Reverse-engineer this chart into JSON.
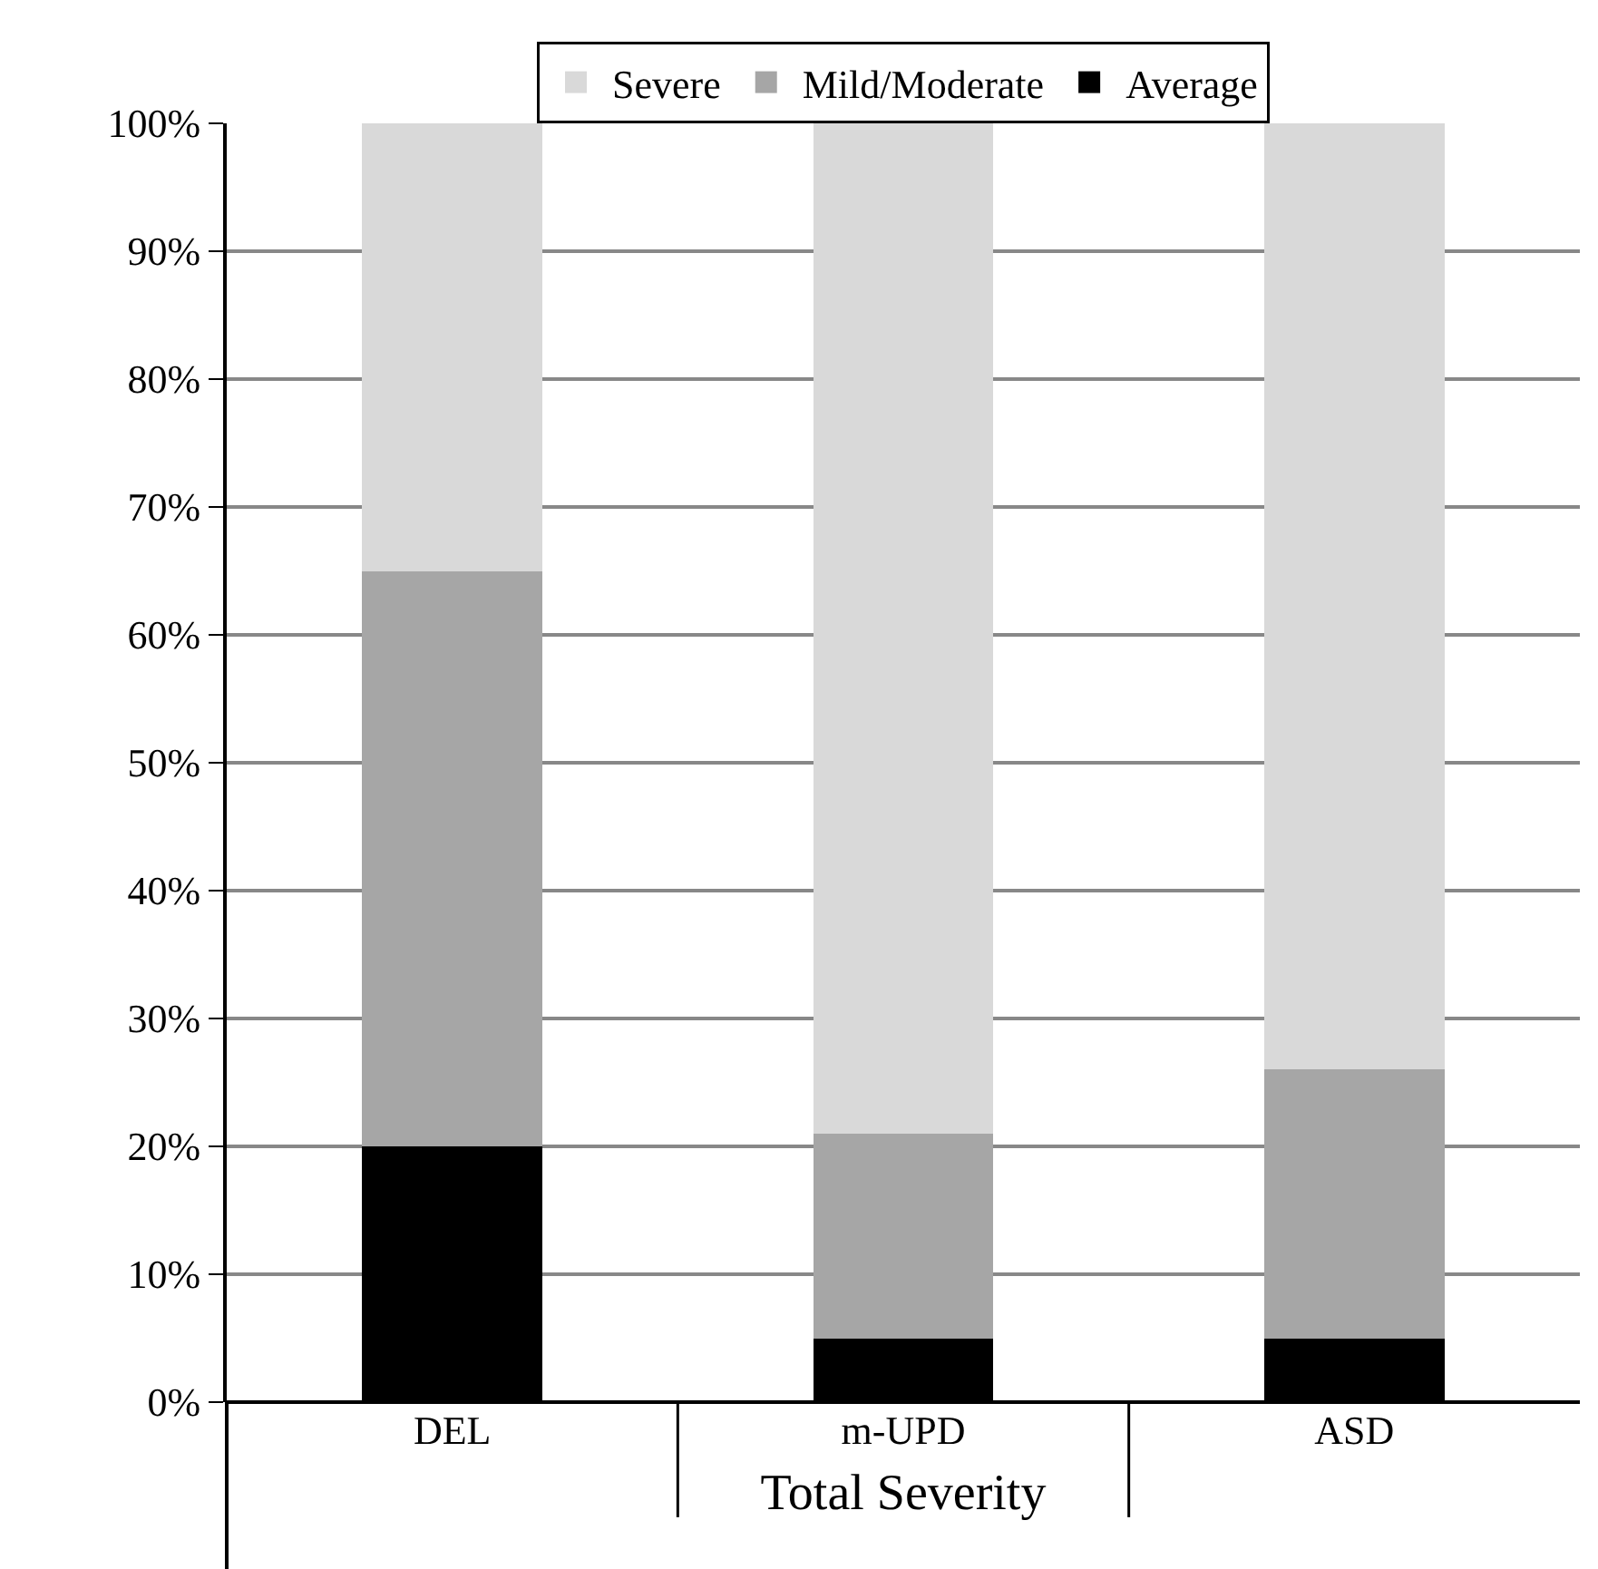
{
  "chart_data": {
    "type": "bar",
    "stacked": true,
    "xlabel": "Total Severity",
    "categories": [
      "DEL",
      "m-UPD",
      "ASD"
    ],
    "series": [
      {
        "name": "Average",
        "color": "#000000",
        "values": [
          20,
          5,
          5
        ]
      },
      {
        "name": "Mild/Moderate",
        "color": "#a6a6a6",
        "values": [
          45,
          16,
          21
        ]
      },
      {
        "name": "Severe",
        "color": "#d9d9d9",
        "values": [
          35,
          79,
          74
        ]
      }
    ],
    "ylim": [
      0,
      100
    ],
    "yticks": [
      {
        "value": 0,
        "label": "0%"
      },
      {
        "value": 10,
        "label": "10%"
      },
      {
        "value": 20,
        "label": "20%"
      },
      {
        "value": 30,
        "label": "30%"
      },
      {
        "value": 40,
        "label": "40%"
      },
      {
        "value": 50,
        "label": "50%"
      },
      {
        "value": 60,
        "label": "60%"
      },
      {
        "value": 70,
        "label": "70%"
      },
      {
        "value": 80,
        "label": "80%"
      },
      {
        "value": 90,
        "label": "90%"
      },
      {
        "value": 100,
        "label": "100%"
      }
    ],
    "grid": "y",
    "legend": "top"
  }
}
